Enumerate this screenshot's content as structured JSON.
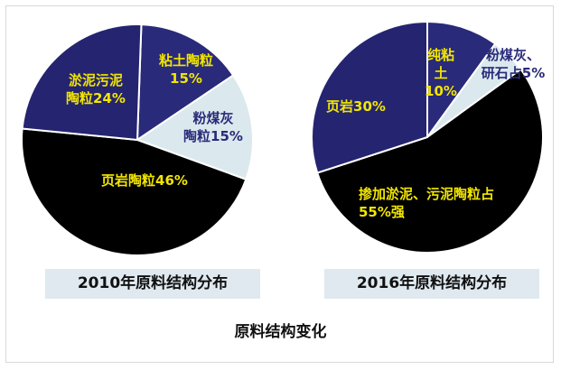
{
  "title": "原料结构变化",
  "chart_data": [
    {
      "type": "pie",
      "title": "2010年原料结构分布",
      "slices": [
        {
          "label": "粘土陶粒15%",
          "value": 15,
          "color": "#2a2a7a"
        },
        {
          "label": "粉煤灰陶粒15%",
          "value": 15,
          "color": "#dbe9ee"
        },
        {
          "label": "页岩陶粒46%",
          "value": 46,
          "color": "#000000"
        },
        {
          "label": "淤泥污泥陶粒24%",
          "value": 24,
          "color": "#242470"
        }
      ]
    },
    {
      "type": "pie",
      "title": "2016年原料结构分布",
      "slices": [
        {
          "label": "纯粘土10%",
          "value": 10,
          "color": "#2a2a7a"
        },
        {
          "label": "粉煤灰、研石占5%",
          "value": 5,
          "color": "#dbe9ee"
        },
        {
          "label": "掺加淤泥、污泥陶粒占55%强",
          "value": 55,
          "color": "#000000"
        },
        {
          "label": "页岩30%",
          "value": 30,
          "color": "#242470"
        }
      ]
    }
  ]
}
